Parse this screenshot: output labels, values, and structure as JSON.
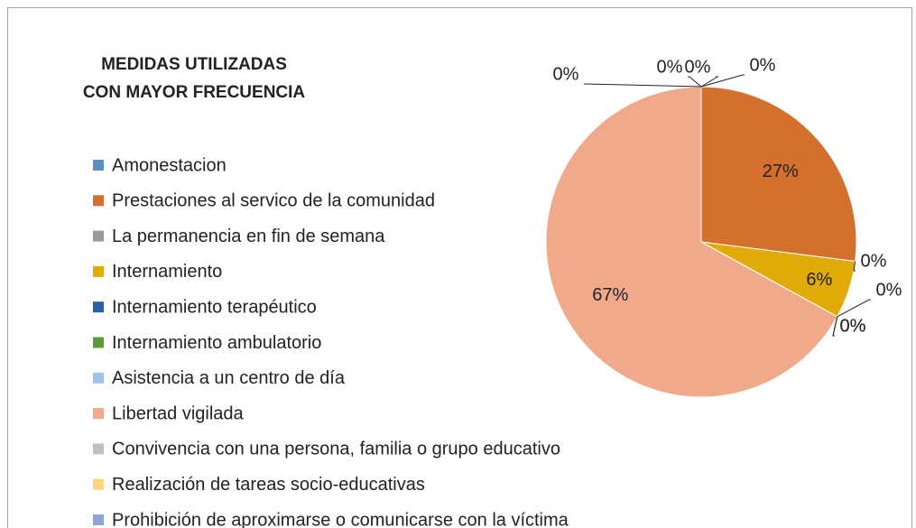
{
  "chart_data": {
    "type": "pie",
    "title": [
      "MEDIDAS UTILIZADAS",
      "CON MAYOR FRECUENCIA"
    ],
    "categories": [
      "Amonestacion",
      "Prestaciones al servico de la comunidad",
      "La permanencia en fin de semana",
      "Internamiento",
      "Internamiento terapéutico",
      "Internamiento ambulatorio",
      "Asistencia a un centro de día",
      "Libertad vigilada",
      "Convivencia con una persona, familia o grupo educativo",
      "Realización de tareas socio-educativas",
      "Prohibición de aproximarse o comunicarse con la víctima"
    ],
    "values": [
      0,
      27,
      0,
      6,
      0,
      0,
      0,
      67,
      0,
      0,
      0
    ],
    "value_labels": [
      "0%",
      "27%",
      "0%",
      "6%",
      "0%",
      "0%",
      "0%",
      "67%",
      "0%",
      "0%",
      "0%"
    ],
    "colors": [
      "#5b8fc4",
      "#d56f2d",
      "#999999",
      "#e1ab05",
      "#2f5ea6",
      "#5f993c",
      "#9fc3e7",
      "#f1a98b",
      "#c0c0c0",
      "#ffd47a",
      "#8ea6d6"
    ],
    "legend": "left"
  }
}
